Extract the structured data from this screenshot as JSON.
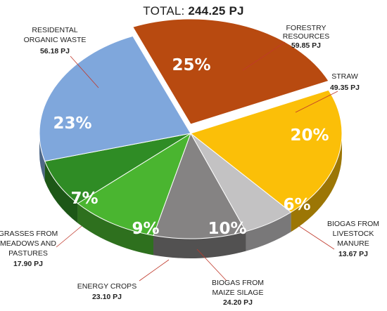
{
  "chart_data": {
    "type": "pie",
    "title_prefix": "TOTAL:",
    "title_value": "244.25 PJ",
    "slices": [
      {
        "key": "forestry",
        "label_lines": [
          "FORESTRY",
          "RESOURCES"
        ],
        "value": 59.85,
        "value_label": "59.85 PJ",
        "percent_label": "25%",
        "color": "#b84a10"
      },
      {
        "key": "straw",
        "label_lines": [
          "STRAW"
        ],
        "value": 49.35,
        "value_label": "49.35 PJ",
        "percent_label": "20%",
        "color": "#fbbf08"
      },
      {
        "key": "livestock",
        "label_lines": [
          "BIOGAS FROM",
          "LIVESTOCK",
          "MANURE"
        ],
        "value": 13.67,
        "value_label": "13.67 PJ",
        "percent_label": "6%",
        "color": "#c3c2c3"
      },
      {
        "key": "maize",
        "label_lines": [
          "BIOGAS FROM",
          "MAIZE SILAGE"
        ],
        "value": 24.2,
        "value_label": "24.20 PJ",
        "percent_label": "10%",
        "color": "#858383"
      },
      {
        "key": "energy",
        "label_lines": [
          "ENERGY CROPS"
        ],
        "value": 23.1,
        "value_label": "23.10 PJ",
        "percent_label": "9%",
        "color": "#4ab530"
      },
      {
        "key": "grasses",
        "label_lines": [
          "GRASSES FROM",
          "MEADOWS AND",
          "PASTURES"
        ],
        "value": 17.9,
        "value_label": "17.90 PJ",
        "percent_label": "7%",
        "color": "#2f8c25"
      },
      {
        "key": "residential",
        "label_lines": [
          "RESIDENTAL",
          "ORGANIC WASTE"
        ],
        "value": 56.18,
        "value_label": "56.18 PJ",
        "percent_label": "23%",
        "color": "#7fa7dc"
      }
    ]
  }
}
